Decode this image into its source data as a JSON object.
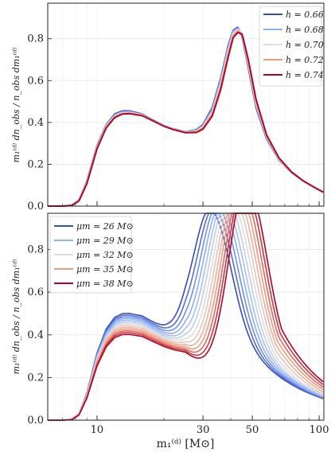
{
  "chart_data": [
    {
      "type": "line",
      "xscale": "log",
      "xlim": [
        6,
        105
      ],
      "ylim": [
        0,
        0.97
      ],
      "xticks": [
        10,
        30,
        50,
        100
      ],
      "xtick_labels": [
        "",
        "",
        "",
        ""
      ],
      "yticks": [
        0,
        0.2,
        0.4,
        0.6,
        0.8
      ],
      "ytick_labels": [
        "0.0",
        "0.2",
        "0.4",
        "0.6",
        "0.8"
      ],
      "ylabel": "m₁⁽ᵈ⁾ dn_obs / n_obs dm₁⁽ᵈ⁾",
      "grid": true,
      "legend_position": "top-right",
      "series": [
        {
          "name": "h = 0.66",
          "color": "#3b4cc0",
          "x": [
            6,
            7,
            7.7,
            8.3,
            9,
            10,
            11,
            12,
            13,
            14,
            16,
            18,
            20,
            22,
            25,
            28,
            30,
            33,
            36,
            39,
            41,
            43,
            45,
            48,
            52,
            58,
            66,
            75,
            85,
            95,
            105
          ],
          "y": [
            0.0,
            0.0,
            0.004,
            0.03,
            0.12,
            0.29,
            0.39,
            0.44,
            0.455,
            0.455,
            0.44,
            0.41,
            0.385,
            0.37,
            0.355,
            0.365,
            0.39,
            0.47,
            0.61,
            0.77,
            0.84,
            0.855,
            0.81,
            0.66,
            0.47,
            0.32,
            0.22,
            0.16,
            0.12,
            0.09,
            0.065
          ]
        },
        {
          "name": "h = 0.68",
          "color": "#8db0fe",
          "x": [
            6,
            7,
            7.7,
            8.3,
            9,
            10,
            11,
            12,
            13,
            14,
            16,
            18,
            20,
            22,
            25,
            28,
            30,
            33,
            36,
            39,
            41,
            43,
            45,
            48,
            52,
            58,
            66,
            75,
            85,
            95,
            105
          ],
          "y": [
            0.0,
            0.0,
            0.004,
            0.029,
            0.118,
            0.287,
            0.387,
            0.435,
            0.451,
            0.451,
            0.438,
            0.409,
            0.385,
            0.369,
            0.354,
            0.362,
            0.385,
            0.46,
            0.6,
            0.76,
            0.835,
            0.85,
            0.815,
            0.67,
            0.48,
            0.325,
            0.222,
            0.161,
            0.12,
            0.09,
            0.065
          ]
        },
        {
          "name": "h = 0.70",
          "color": "#dddddd",
          "x": [
            6,
            7,
            7.7,
            8.3,
            9,
            10,
            11,
            12,
            13,
            14,
            16,
            18,
            20,
            22,
            25,
            28,
            30,
            33,
            36,
            39,
            41,
            43,
            45,
            48,
            52,
            58,
            66,
            75,
            85,
            95,
            105
          ],
          "y": [
            0.0,
            0.0,
            0.003,
            0.027,
            0.114,
            0.282,
            0.382,
            0.43,
            0.446,
            0.447,
            0.436,
            0.408,
            0.384,
            0.368,
            0.353,
            0.358,
            0.38,
            0.45,
            0.585,
            0.745,
            0.825,
            0.845,
            0.82,
            0.68,
            0.49,
            0.33,
            0.225,
            0.162,
            0.12,
            0.09,
            0.065
          ]
        },
        {
          "name": "h = 0.72",
          "color": "#f49a7b",
          "x": [
            6,
            7,
            7.7,
            8.3,
            9,
            10,
            11,
            12,
            13,
            14,
            16,
            18,
            20,
            22,
            25,
            28,
            30,
            33,
            36,
            39,
            41,
            43,
            45,
            48,
            52,
            58,
            66,
            75,
            85,
            95,
            105
          ],
          "y": [
            0.0,
            0.0,
            0.003,
            0.026,
            0.11,
            0.278,
            0.378,
            0.426,
            0.443,
            0.444,
            0.434,
            0.407,
            0.383,
            0.367,
            0.352,
            0.355,
            0.374,
            0.44,
            0.57,
            0.73,
            0.815,
            0.838,
            0.822,
            0.69,
            0.5,
            0.335,
            0.228,
            0.163,
            0.12,
            0.09,
            0.065
          ]
        },
        {
          "name": "h = 0.74",
          "color": "#b40426",
          "x": [
            6,
            7,
            7.7,
            8.3,
            9,
            10,
            11,
            12,
            13,
            14,
            16,
            18,
            20,
            22,
            25,
            28,
            30,
            33,
            36,
            39,
            41,
            43,
            45,
            48,
            52,
            58,
            66,
            75,
            85,
            95,
            105
          ],
          "y": [
            0.0,
            0.0,
            0.003,
            0.025,
            0.107,
            0.274,
            0.374,
            0.423,
            0.44,
            0.442,
            0.432,
            0.406,
            0.382,
            0.366,
            0.351,
            0.352,
            0.368,
            0.43,
            0.555,
            0.715,
            0.805,
            0.83,
            0.823,
            0.7,
            0.51,
            0.34,
            0.23,
            0.164,
            0.12,
            0.09,
            0.065
          ]
        }
      ]
    },
    {
      "type": "line",
      "xscale": "log",
      "xlim": [
        6,
        105
      ],
      "ylim": [
        0,
        0.97
      ],
      "xticks": [
        10,
        30,
        50,
        100
      ],
      "xtick_labels": [
        "10",
        "30",
        "50",
        "100"
      ],
      "yticks": [
        0,
        0.2,
        0.4,
        0.6,
        0.8
      ],
      "ytick_labels": [
        "0.0",
        "0.2",
        "0.4",
        "0.6",
        "0.8"
      ],
      "xlabel": "m₁⁽ᵈ⁾ [M⊙]",
      "ylabel": "m₁⁽ᵈ⁾ dn_obs / n_obs dm₁⁽ᵈ⁾",
      "grid": true,
      "legend_position": "top-left",
      "mu_range": [
        26,
        38
      ],
      "family_count": 13,
      "series": [
        {
          "name": "μm = 26 M⊙",
          "color": "#3b4cc0",
          "mu": 26
        },
        {
          "name": "μm = 29 M⊙",
          "color": "#8db0fe",
          "mu": 29
        },
        {
          "name": "μm = 32 M⊙",
          "color": "#dddddd",
          "mu": 32
        },
        {
          "name": "μm = 35 M⊙",
          "color": "#f49a7b",
          "mu": 35
        },
        {
          "name": "μm = 38 M⊙",
          "color": "#b40426",
          "mu": 38
        }
      ],
      "colormap": [
        "#3b4cc0",
        "#8db0fe",
        "#dddddd",
        "#f49a7b",
        "#b40426"
      ]
    }
  ],
  "legend_top": {
    "items": [
      "h = 0.66",
      "h = 0.68",
      "h = 0.70",
      "h = 0.72",
      "h = 0.74"
    ]
  },
  "legend_bottom": {
    "items": [
      "μm = 26 M⊙",
      "μm = 29 M⊙",
      "μm = 32 M⊙",
      "μm = 35 M⊙",
      "μm = 38 M⊙"
    ]
  },
  "xlabel": "m₁⁽ᵈ⁾ [M⊙]"
}
